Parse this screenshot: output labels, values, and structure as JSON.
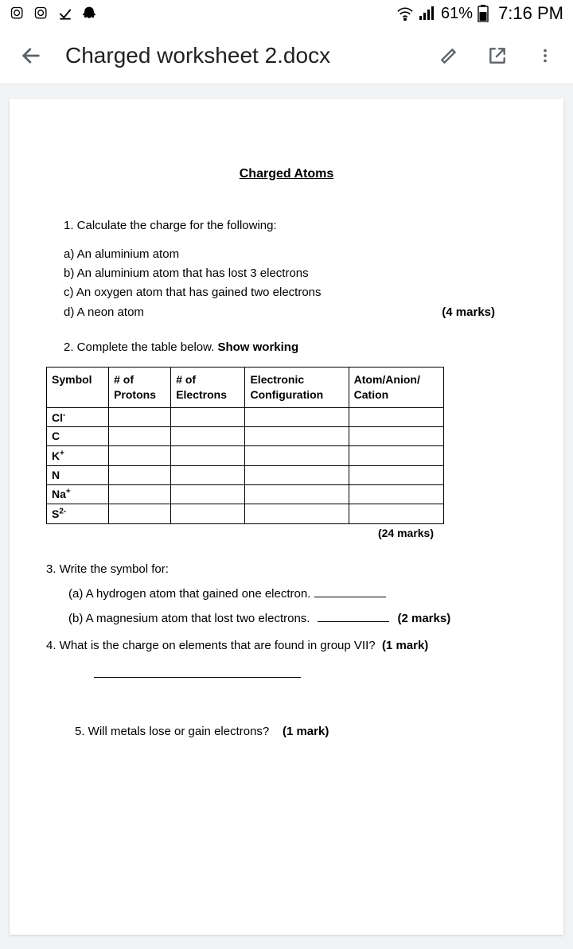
{
  "status": {
    "battery_pct": "61%",
    "time": "7:16 PM"
  },
  "appbar": {
    "title": "Charged worksheet 2.docx"
  },
  "document": {
    "title": "Charged Atoms",
    "q1": {
      "prompt": "1.  Calculate the charge for the following:",
      "a": "a)  An aluminium atom",
      "b": "b)  An aluminium atom that has lost 3 electrons",
      "c": "c)  An oxygen atom that has gained two electrons",
      "d": "d)  A neon atom",
      "marks": "(4 marks)"
    },
    "q2": {
      "prompt_prefix": "2.  Complete the table below. ",
      "prompt_bold": "Show working",
      "headers": {
        "symbol": "Symbol",
        "protons_l1": "# of",
        "protons_l2": "Protons",
        "electrons_l1": "# of",
        "electrons_l2": "Electrons",
        "config_l1": "Electronic",
        "config_l2": "Configuration",
        "type_l1": "Atom/Anion/",
        "type_l2": "Cation"
      },
      "rows": [
        {
          "sym_base": "Cl",
          "sym_sup": "-"
        },
        {
          "sym_base": "C",
          "sym_sup": ""
        },
        {
          "sym_base": "K",
          "sym_sup": "+"
        },
        {
          "sym_base": "N",
          "sym_sup": ""
        },
        {
          "sym_base": "Na",
          "sym_sup": "+"
        },
        {
          "sym_base": "S",
          "sym_sup": "2-"
        }
      ],
      "marks": "(24 marks)"
    },
    "q3": {
      "prompt": "3. Write the symbol for:",
      "a": "(a) A hydrogen atom that gained one electron.",
      "b": "(b) A magnesium atom that lost two electrons.",
      "marks": "(2 marks)"
    },
    "q4": {
      "text": "4. What is the charge on elements that are found in group VII?",
      "marks": "(1 mark)"
    },
    "q5": {
      "text": "5.  Will metals lose or gain electrons?",
      "marks": "(1 mark)"
    }
  }
}
